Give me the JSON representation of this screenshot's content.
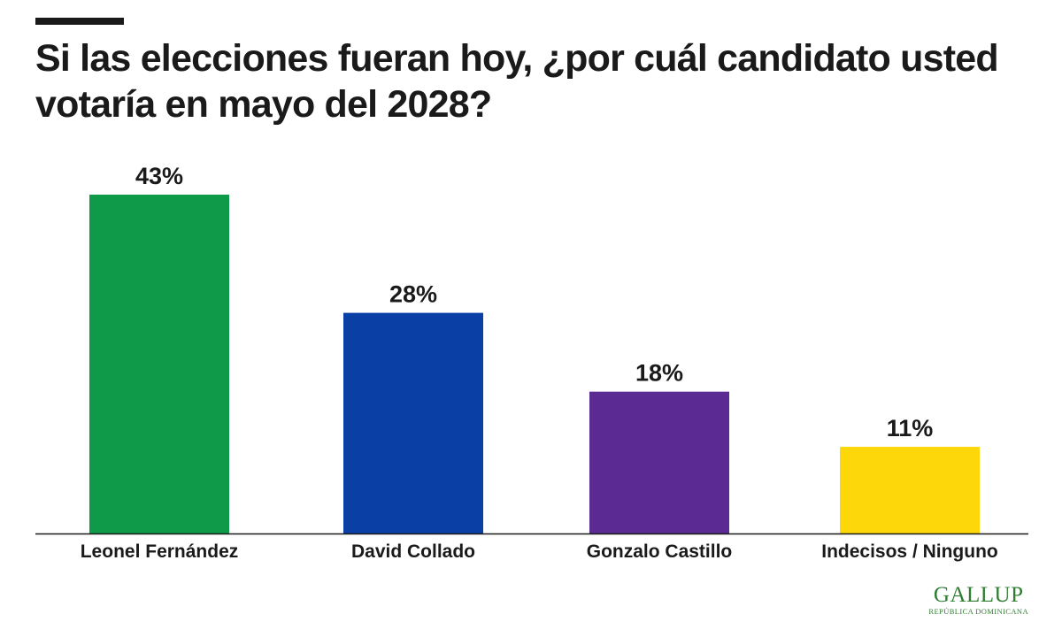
{
  "chart_data": {
    "type": "bar",
    "title": "Si las elecciones fueran hoy, ¿por cuál candidato usted votaría en mayo del 2028?",
    "categories": [
      "Leonel Fernández",
      "David Collado",
      "Gonzalo Castillo",
      "Indecisos / Ninguno"
    ],
    "values": [
      43,
      28,
      18,
      11
    ],
    "value_labels": [
      "43%",
      "28%",
      "18%",
      "11%"
    ],
    "colors": [
      "#0e9a48",
      "#0a3fa6",
      "#5b2a93",
      "#fdd70a"
    ],
    "ylim": [
      0,
      43
    ],
    "grid": false,
    "legend": "none"
  },
  "logo": {
    "name": "GALLUP",
    "subtitle": "REPÚBLICA DOMINICANA"
  }
}
